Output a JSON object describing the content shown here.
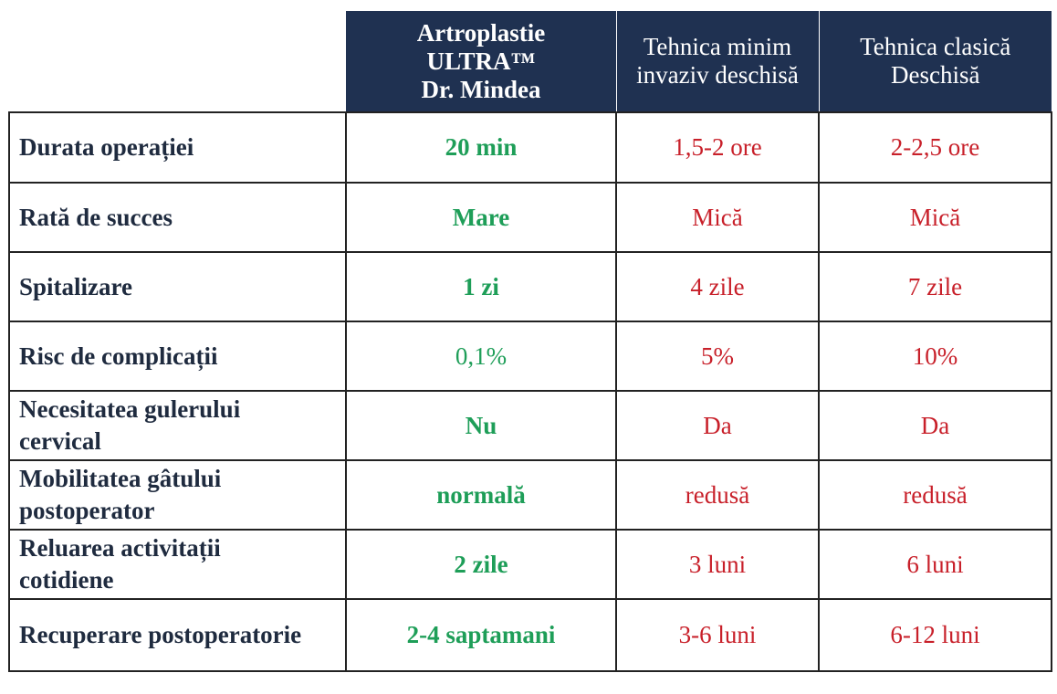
{
  "header": {
    "col1": [
      "Artroplastie",
      "ULTRA™",
      "Dr. Mindea"
    ],
    "col2": [
      "Tehnica minim",
      "invaziv deschisă"
    ],
    "col3": [
      "Tehnica clasică",
      "Deschisă"
    ]
  },
  "rows": [
    {
      "label": [
        "Durata operației"
      ],
      "ultra": "20 min",
      "minim": "1,5-2 ore",
      "clasica": "2-2,5 ore"
    },
    {
      "label": [
        "Rată de succes"
      ],
      "ultra": "Mare",
      "minim": "Mică",
      "clasica": "Mică"
    },
    {
      "label": [
        "Spitalizare"
      ],
      "ultra": "1 zi",
      "minim": "4 zile",
      "clasica": "7 zile"
    },
    {
      "label": [
        "Risc de complicații"
      ],
      "ultra": "0,1%",
      "minim": "5%",
      "clasica": "10%"
    },
    {
      "label": [
        "Necesitatea gulerului",
        "cervical"
      ],
      "ultra": "Nu",
      "minim": "Da",
      "clasica": "Da"
    },
    {
      "label": [
        "Mobilitatea gâtului",
        "postoperator"
      ],
      "ultra": "normală",
      "minim": "redusă",
      "clasica": "redusă"
    },
    {
      "label": [
        "Reluarea activitații",
        "cotidiene"
      ],
      "ultra": "2 zile",
      "minim": "3 luni",
      "clasica": "6 luni"
    },
    {
      "label": [
        "Recuperare postoperatorie"
      ],
      "ultra": "2-4 saptamani",
      "minim": "3-6 luni",
      "clasica": "6-12 luni"
    }
  ],
  "colors": {
    "header_bg": "#1f3151",
    "good": "#1e9e58",
    "bad": "#c8202a",
    "label_text": "#1f2b3f"
  }
}
